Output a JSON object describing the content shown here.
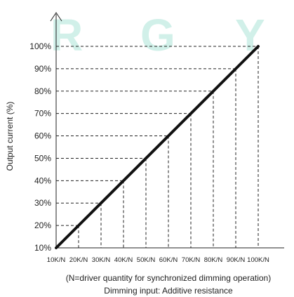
{
  "watermark": [
    "R",
    "G",
    "Y"
  ],
  "chart_data": {
    "type": "line",
    "x_categories": [
      "10K/N",
      "20K/N",
      "30K/N",
      "40K/N",
      "50K/N",
      "60K/N",
      "70K/N",
      "80K/N",
      "90K/N",
      "100K/N"
    ],
    "y_tick_labels": [
      "10%",
      "20%",
      "30%",
      "40%",
      "50%",
      "60%",
      "70%",
      "80%",
      "90%",
      "100%"
    ],
    "series": [
      {
        "values": [
          10,
          20,
          30,
          40,
          50,
          60,
          70,
          80,
          90,
          100
        ]
      }
    ],
    "ylim": [
      10,
      100
    ],
    "ylabel": "Output current (%)",
    "xlabel_note": "(N=driver quantity for synchronized dimming operation)",
    "xlabel": "Dimming input: Additive resistance",
    "colors": {
      "line": "#111111",
      "guides": "#222222",
      "watermark": "#c9eee6"
    }
  }
}
